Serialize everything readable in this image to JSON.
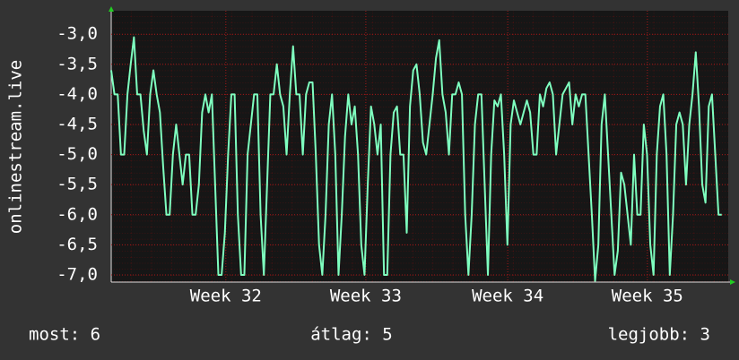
{
  "chart_data": {
    "type": "line",
    "y_label": "onlinestream.live",
    "values": [
      -3.6,
      -4,
      -4,
      -5,
      -5,
      -4,
      -3.5,
      -3.05,
      -4,
      -4,
      -4.6,
      -5,
      -4,
      -3.6,
      -4,
      -4.3,
      -5.2,
      -6,
      -6,
      -5,
      -4.5,
      -5,
      -5.5,
      -5,
      -5,
      -6,
      -6,
      -5.5,
      -4.3,
      -4,
      -4.3,
      -4,
      -5.5,
      -7,
      -7,
      -6.3,
      -5,
      -4,
      -4,
      -6,
      -7,
      -7,
      -5,
      -4.5,
      -4,
      -4,
      -6,
      -7,
      -5.5,
      -4,
      -4,
      -3.5,
      -4,
      -4.2,
      -5,
      -4,
      -3.2,
      -4,
      -4,
      -5,
      -4,
      -3.8,
      -3.8,
      -5,
      -6.5,
      -7,
      -6,
      -4.5,
      -4,
      -5,
      -7,
      -6,
      -4.7,
      -4,
      -4.5,
      -4.2,
      -5,
      -6.5,
      -7,
      -5.5,
      -4.2,
      -4.5,
      -5,
      -4.5,
      -7,
      -7,
      -5,
      -4.3,
      -4.2,
      -5,
      -5,
      -6.3,
      -4.2,
      -3.6,
      -3.5,
      -4,
      -4.8,
      -5,
      -4.5,
      -4,
      -3.4,
      -3.1,
      -4,
      -4.3,
      -5,
      -4,
      -4,
      -3.8,
      -4,
      -6,
      -7,
      -6,
      -4.5,
      -4,
      -4,
      -5.5,
      -7,
      -5,
      -4.1,
      -4.2,
      -4,
      -5,
      -6.5,
      -4.5,
      -4.1,
      -4.3,
      -4.5,
      -4.3,
      -4.1,
      -4.3,
      -5,
      -5,
      -4,
      -4.2,
      -3.9,
      -3.8,
      -4,
      -5,
      -4.5,
      -4,
      -3.9,
      -3.8,
      -4.5,
      -4,
      -4.2,
      -4,
      -4,
      -5,
      -6,
      -7.1,
      -6.5,
      -4.5,
      -4,
      -5,
      -6,
      -7,
      -6.6,
      -5.3,
      -5.5,
      -6,
      -6.5,
      -5,
      -6,
      -6,
      -4.5,
      -5,
      -6.5,
      -7,
      -5,
      -4.2,
      -4,
      -5,
      -7,
      -6,
      -4.5,
      -4.3,
      -4.5,
      -5.5,
      -4.5,
      -4,
      -3.3,
      -4.2,
      -5.5,
      -5.8,
      -4.2,
      -4,
      -5,
      -6,
      -6
    ],
    "color": "#7fffbf",
    "xlim": [
      0,
      190
    ],
    "xticks": [
      {
        "value": 35.3,
        "label": "Week 32"
      },
      {
        "value": 78.4,
        "label": "Week 33"
      },
      {
        "value": 122.1,
        "label": "Week 34"
      },
      {
        "value": 165.1,
        "label": "Week 35"
      }
    ],
    "ylim": [
      -7.12,
      -2.61
    ],
    "yticks": [
      {
        "value": -7,
        "label": "-7,0"
      },
      {
        "value": -6.5,
        "label": "-6,5"
      },
      {
        "value": -6,
        "label": "-6,0"
      },
      {
        "value": -5.5,
        "label": "-5,5"
      },
      {
        "value": -5,
        "label": "-5,0"
      },
      {
        "value": -4.5,
        "label": "-4,5"
      },
      {
        "value": -4,
        "label": "-4,0"
      },
      {
        "value": -3.5,
        "label": "-3,5"
      },
      {
        "value": -3,
        "label": "-3,0"
      }
    ],
    "grid": true,
    "footer": [
      "most: 6",
      "átlag: 5",
      "legjobb: 3"
    ]
  }
}
